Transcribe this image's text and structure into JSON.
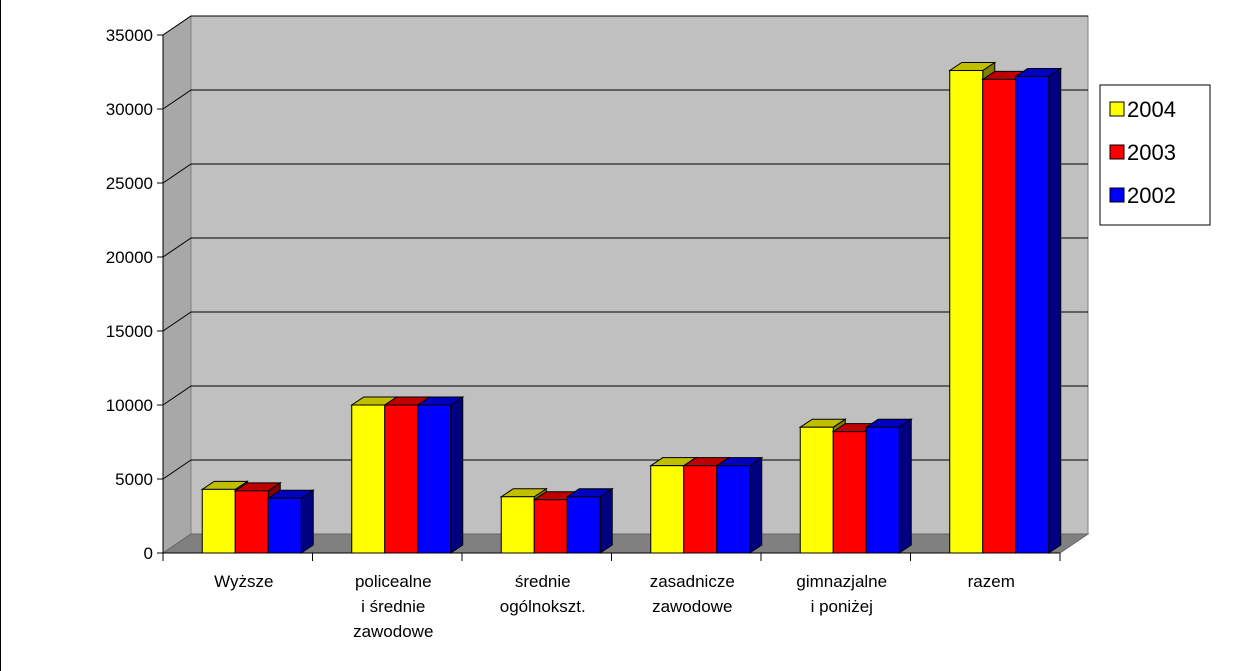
{
  "chart_data": {
    "type": "bar",
    "style": "3d-clustered",
    "categories": [
      [
        "Wyższe"
      ],
      [
        "policealne",
        "i średnie",
        "zawodowe"
      ],
      [
        "średnie",
        "ogólnokszt."
      ],
      [
        "zasadnicze",
        "zawodowe"
      ],
      [
        "gimnazjalne",
        "i poniżej"
      ],
      [
        "razem"
      ]
    ],
    "series": [
      {
        "name": "2004",
        "color": "#ffff00",
        "values": [
          4300,
          10000,
          3800,
          5900,
          8500,
          32600
        ]
      },
      {
        "name": "2003",
        "color": "#ff0000",
        "values": [
          4200,
          10000,
          3600,
          5900,
          8200,
          32000
        ]
      },
      {
        "name": "2002",
        "color": "#0000ff",
        "values": [
          3700,
          10000,
          3800,
          5900,
          8500,
          32200
        ]
      }
    ],
    "ylim": [
      0,
      35000
    ],
    "yticks": [
      "0",
      "5000",
      "10000",
      "15000",
      "20000",
      "25000",
      "30000",
      "35000"
    ],
    "grid": true,
    "legend": "right",
    "wall_color": "#c0c0c0",
    "floor_color": "#808080"
  }
}
